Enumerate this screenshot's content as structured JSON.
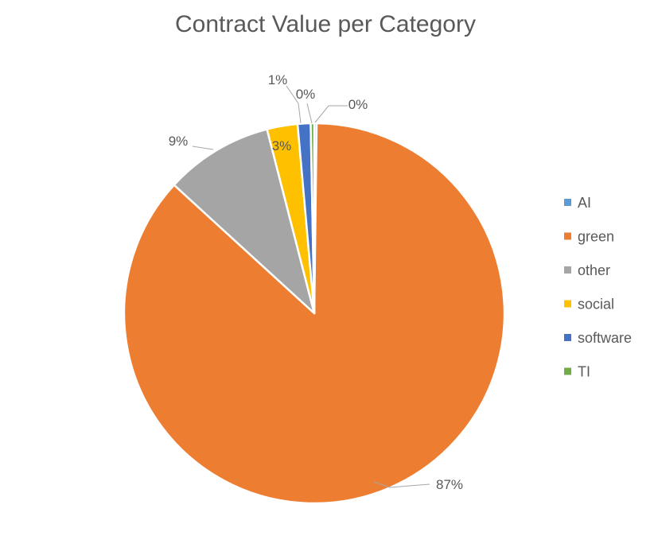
{
  "chart_data": {
    "type": "pie",
    "title": "Contract Value per Category",
    "slices": [
      {
        "label": "AI",
        "value": 0.2,
        "display": "0%",
        "color": "#5B9BD5"
      },
      {
        "label": "green",
        "value": 86.6,
        "display": "87%",
        "color": "#ED7D31"
      },
      {
        "label": "other",
        "value": 9.2,
        "display": "9%",
        "color": "#A5A5A5"
      },
      {
        "label": "social",
        "value": 2.6,
        "display": "3%",
        "color": "#FFC000"
      },
      {
        "label": "software",
        "value": 1.1,
        "display": "1%",
        "color": "#4472C4"
      },
      {
        "label": "TI",
        "value": 0.3,
        "display": "0%",
        "color": "#70AD47"
      }
    ],
    "legend": {
      "position": "right",
      "items": [
        "AI",
        "green",
        "other",
        "social",
        "software",
        "TI"
      ]
    },
    "start_angle_deg": 0,
    "direction": "clockwise"
  }
}
